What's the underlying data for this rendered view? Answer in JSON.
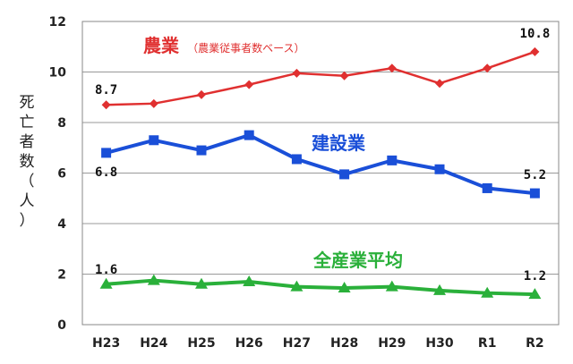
{
  "chart_data": {
    "type": "line",
    "categories": [
      "H23",
      "H24",
      "H25",
      "H26",
      "H27",
      "H28",
      "H29",
      "H30",
      "R1",
      "R2"
    ],
    "ylim": [
      0,
      12
    ],
    "yticks": [
      0,
      2,
      4,
      6,
      8,
      10,
      12
    ],
    "ylabel": "死亡者数（人）",
    "grid": "horizontal",
    "series": [
      {
        "name": "農業",
        "name_note": "（農業従事者数ベース）",
        "color": "#e03030",
        "marker": "diamond",
        "values": [
          8.7,
          8.75,
          9.1,
          9.5,
          9.95,
          9.85,
          10.15,
          9.55,
          10.15,
          10.8
        ],
        "first_label": "8.7",
        "last_label": "10.8"
      },
      {
        "name": "建設業",
        "color": "#1a4fd8",
        "marker": "square",
        "values": [
          6.8,
          7.3,
          6.9,
          7.5,
          6.55,
          5.95,
          6.5,
          6.15,
          5.4,
          5.2
        ],
        "first_label": "6.8",
        "last_label": "5.2"
      },
      {
        "name": "全産業平均",
        "color": "#2ab03a",
        "marker": "triangle",
        "values": [
          1.6,
          1.75,
          1.6,
          1.7,
          1.5,
          1.45,
          1.5,
          1.35,
          1.25,
          1.2
        ],
        "first_label": "1.6",
        "last_label": "1.2"
      }
    ]
  }
}
